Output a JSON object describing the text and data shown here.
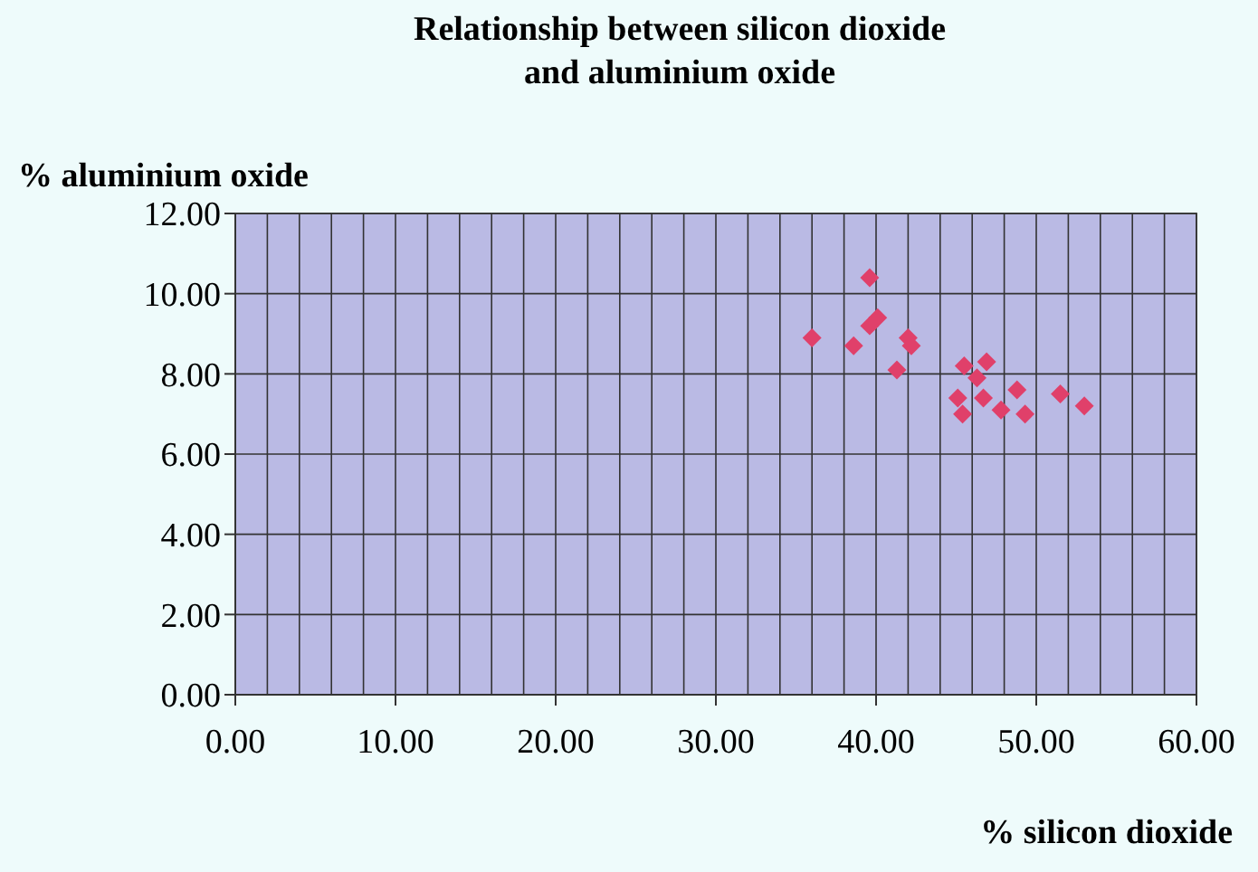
{
  "chart_data": {
    "type": "scatter",
    "title": "Relationship between silicon dioxide\nand aluminium oxide",
    "xlabel": "% silicon dioxide",
    "ylabel": "% aluminium oxide",
    "x": [
      36.0,
      39.6,
      38.6,
      39.6,
      40.1,
      41.3,
      42.0,
      42.2,
      45.5,
      46.9,
      46.3,
      45.1,
      45.4,
      46.7,
      47.8,
      48.8,
      49.3,
      51.5,
      53.0
    ],
    "series": [
      {
        "color": "#e0406a",
        "values": [
          8.9,
          10.4,
          8.7,
          9.2,
          9.4,
          8.1,
          8.9,
          8.7,
          8.2,
          8.3,
          7.9,
          7.4,
          7.0,
          7.4,
          7.1,
          7.6,
          7.0,
          7.5,
          7.2
        ]
      }
    ],
    "xlim": [
      0,
      60
    ],
    "ylim": [
      0,
      12
    ],
    "xticks": [
      {
        "value": 0,
        "label": "0.00"
      },
      {
        "value": 2,
        "label": null
      },
      {
        "value": 4,
        "label": null
      },
      {
        "value": 6,
        "label": null
      },
      {
        "value": 8,
        "label": null
      },
      {
        "value": 10,
        "label": "10.00"
      },
      {
        "value": 12,
        "label": null
      },
      {
        "value": 14,
        "label": null
      },
      {
        "value": 16,
        "label": null
      },
      {
        "value": 18,
        "label": null
      },
      {
        "value": 20,
        "label": "20.00"
      },
      {
        "value": 22,
        "label": null
      },
      {
        "value": 24,
        "label": null
      },
      {
        "value": 26,
        "label": null
      },
      {
        "value": 28,
        "label": null
      },
      {
        "value": 30,
        "label": "30.00"
      },
      {
        "value": 32,
        "label": null
      },
      {
        "value": 34,
        "label": null
      },
      {
        "value": 36,
        "label": null
      },
      {
        "value": 38,
        "label": null
      },
      {
        "value": 40,
        "label": "40.00"
      },
      {
        "value": 42,
        "label": null
      },
      {
        "value": 44,
        "label": null
      },
      {
        "value": 46,
        "label": null
      },
      {
        "value": 48,
        "label": null
      },
      {
        "value": 50,
        "label": "50.00"
      },
      {
        "value": 52,
        "label": null
      },
      {
        "value": 54,
        "label": null
      },
      {
        "value": 56,
        "label": null
      },
      {
        "value": 58,
        "label": null
      },
      {
        "value": 60,
        "label": "60.00"
      }
    ],
    "yticks": [
      {
        "value": 0,
        "label": "0.00"
      },
      {
        "value": 2,
        "label": "2.00"
      },
      {
        "value": 4,
        "label": "4.00"
      },
      {
        "value": 6,
        "label": "6.00"
      },
      {
        "value": 8,
        "label": "8.00"
      },
      {
        "value": 10,
        "label": "10.00"
      },
      {
        "value": 12,
        "label": "12.00"
      }
    ],
    "grid": true,
    "marker": "diamond"
  }
}
